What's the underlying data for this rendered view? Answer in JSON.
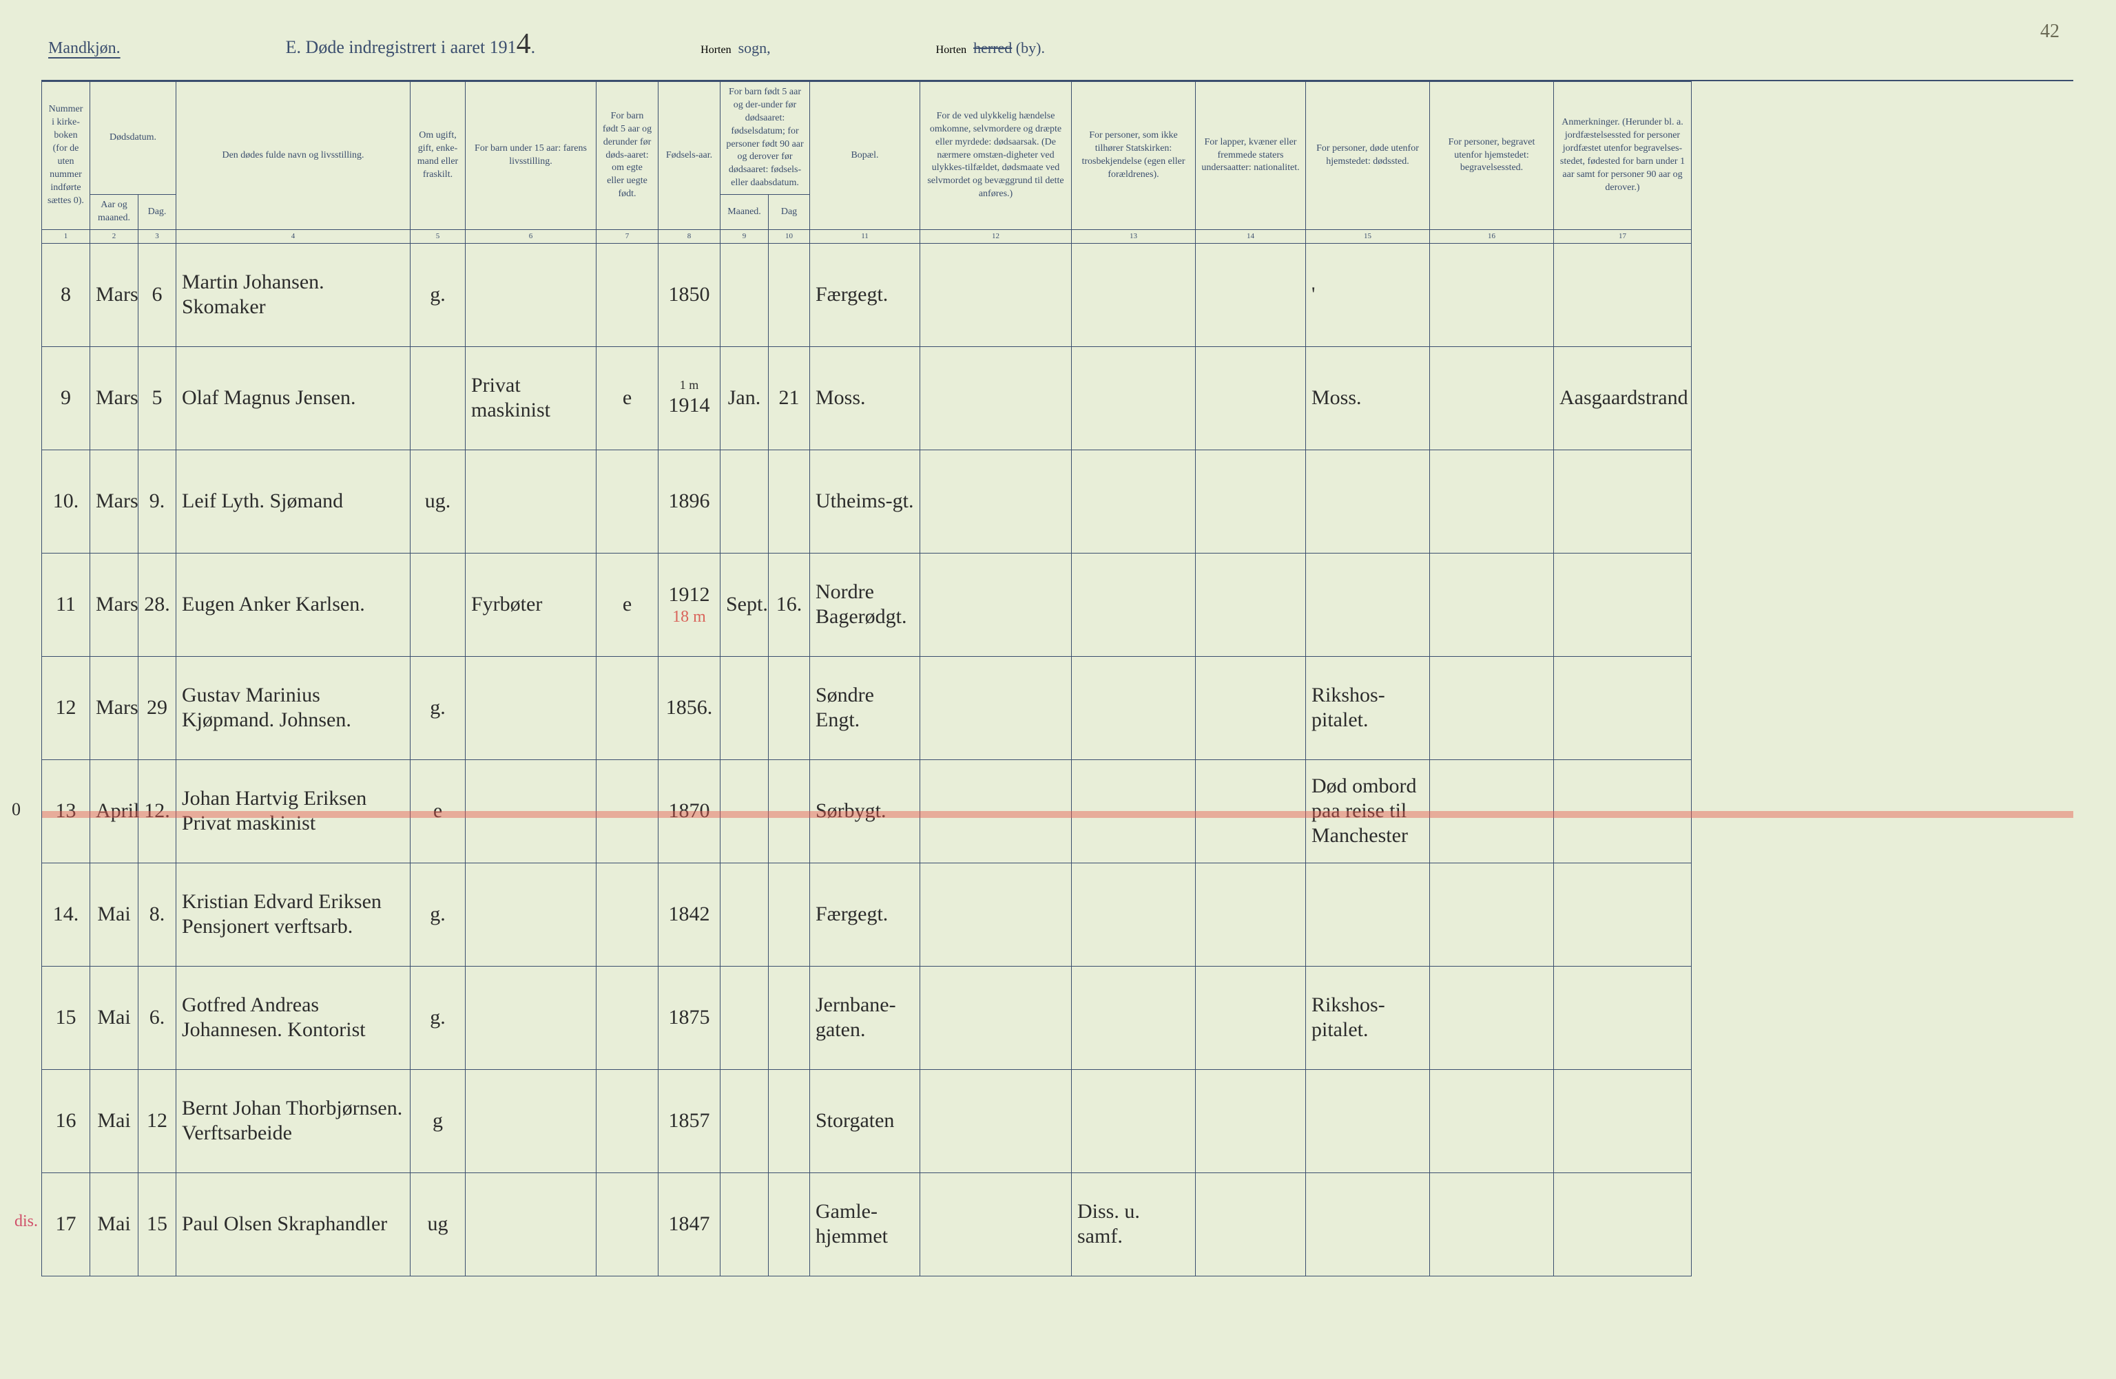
{
  "corner_number": "42",
  "header": {
    "left": "Mandkjøn.",
    "center_prefix": "E.   Døde indregistrert i aaret 191",
    "center_year_digit": "4",
    "center_suffix": ".",
    "sogn_script": "Horten",
    "sogn_label": "sogn,",
    "by_script": "Horten",
    "by_struck": "herred",
    "by_suffix": "(by)."
  },
  "columns": {
    "c1": "Nummer i kirke-boken (for de uten nummer indførte sættes 0).",
    "c2_group": "Dødsdatum.",
    "c2": "Aar og maaned.",
    "c3": "Dag.",
    "c4": "Den dødes fulde navn og livsstilling.",
    "c5": "Om ugift, gift, enke-mand eller fraskilt.",
    "c6": "For barn under 15 aar: farens livsstilling.",
    "c7": "For barn født 5 aar og derunder før døds-aaret: om egte eller uegte født.",
    "c8": "Fødsels-aar.",
    "c9_10_group": "For barn født 5 aar og der-under før dødsaaret: fødselsdatum; for personer født 90 aar og derover før dødsaaret: fødsels- eller daabsdatum.",
    "c9": "Maaned.",
    "c10": "Dag",
    "c11": "Bopæl.",
    "c12": "For de ved ulykkelig hændelse omkomne, selvmordere og dræpte eller myrdede: dødsaarsak. (De nærmere omstæn-digheter ved ulykkes-tilfældet, dødsmaate ved selvmordet og bevæggrund til dette anføres.)",
    "c13": "For personer, som ikke tilhører Statskirken: trosbekjendelse (egen eller forældrenes).",
    "c14": "For lapper, kvæner eller fremmede staters undersaatter: nationalitet.",
    "c15": "For personer, døde utenfor hjemstedet: dødssted.",
    "c16": "For personer, begravet utenfor hjemstedet: begravelsessted.",
    "c17": "Anmerkninger. (Herunder bl. a. jordfæstelsessted for personer jordfæstet utenfor begravelses-stedet, fødested for barn under 1 aar samt for personer 90 aar og derover.)"
  },
  "subnums": [
    "1",
    "2",
    "3",
    "4",
    "5",
    "6",
    "7",
    "8",
    "9",
    "10",
    "11",
    "12",
    "13",
    "14",
    "15",
    "16",
    "17"
  ],
  "rows": [
    {
      "num": "8",
      "month": "Mars",
      "day": "6",
      "name": "Martin Johansen. Skomaker",
      "status": "g.",
      "father": "",
      "legit": "",
      "birthyear": "1850",
      "bmonth": "",
      "bday": "",
      "residence": "Færgegt.",
      "c12": "",
      "c13": "",
      "c14": "",
      "c15": "'",
      "c16": "",
      "c17": ""
    },
    {
      "num": "9",
      "month": "Mars",
      "day": "5",
      "name": "Olaf Magnus Jensen.",
      "status": "",
      "father": "Privat maskinist",
      "legit": "e",
      "birthyear": "1914",
      "bmonth": "Jan.",
      "bday": "21",
      "residence": "Moss.",
      "c12": "",
      "c13": "",
      "c14": "",
      "c15": "Moss.",
      "c16": "",
      "c17": "Aasgaardstrand",
      "birthyear_note": "1 m"
    },
    {
      "num": "10.",
      "month": "Mars",
      "day": "9.",
      "name": "Leif Lyth. Sjømand",
      "status": "ug.",
      "father": "",
      "legit": "",
      "birthyear": "1896",
      "bmonth": "",
      "bday": "",
      "residence": "Utheims-gt.",
      "c12": "",
      "c13": "",
      "c14": "",
      "c15": "",
      "c16": "",
      "c17": ""
    },
    {
      "num": "11",
      "month": "Mars",
      "day": "28.",
      "name": "Eugen Anker Karlsen.",
      "status": "",
      "father": "Fyrbøter",
      "legit": "e",
      "birthyear": "1912",
      "bmonth": "Sept.",
      "bday": "16.",
      "residence": "Nordre Bagerødgt.",
      "c12": "",
      "c13": "",
      "c14": "",
      "c15": "",
      "c16": "",
      "c17": "",
      "red_note": "18 m"
    },
    {
      "num": "12",
      "month": "Mars",
      "day": "29",
      "name": "Gustav Marinius Kjøpmand. Johnsen.",
      "status": "g.",
      "father": "",
      "legit": "",
      "birthyear": "1856.",
      "bmonth": "",
      "bday": "",
      "residence": "Søndre Engt.",
      "c12": "",
      "c13": "",
      "c14": "",
      "c15": "Rikshos-pitalet.",
      "c16": "",
      "c17": ""
    },
    {
      "num": "13",
      "month": "April",
      "day": "12.",
      "name": "Johan Hartvig Eriksen Privat maskinist",
      "status": "e",
      "father": "",
      "legit": "",
      "birthyear": "1870",
      "bmonth": "",
      "bday": "",
      "residence": "Sørbygt.",
      "c12": "",
      "c13": "",
      "c14": "",
      "c15": "Død ombord paa reise til Manchester",
      "c16": "",
      "c17": "",
      "struck": true,
      "margin_circle": "0"
    },
    {
      "num": "14.",
      "month": "Mai",
      "day": "8.",
      "name": "Kristian Edvard Eriksen Pensjonert verftsarb.",
      "status": "g.",
      "father": "",
      "legit": "",
      "birthyear": "1842",
      "bmonth": "",
      "bday": "",
      "residence": "Færgegt.",
      "c12": "",
      "c13": "",
      "c14": "",
      "c15": "",
      "c16": "",
      "c17": ""
    },
    {
      "num": "15",
      "month": "Mai",
      "day": "6.",
      "name": "Gotfred Andreas Johannesen. Kontorist",
      "status": "g.",
      "father": "",
      "legit": "",
      "birthyear": "1875",
      "bmonth": "",
      "bday": "",
      "residence": "Jernbane-gaten.",
      "c12": "",
      "c13": "",
      "c14": "",
      "c15": "Rikshos-pitalet.",
      "c16": "",
      "c17": ""
    },
    {
      "num": "16",
      "month": "Mai",
      "day": "12",
      "name": "Bernt Johan Thorbjørnsen. Verftsarbeide",
      "status": "g",
      "father": "",
      "legit": "",
      "birthyear": "1857",
      "bmonth": "",
      "bday": "",
      "residence": "Storgaten",
      "c12": "",
      "c13": "",
      "c14": "",
      "c15": "",
      "c16": "",
      "c17": ""
    },
    {
      "num": "17",
      "month": "Mai",
      "day": "15",
      "name": "Paul Olsen Skraphandler",
      "status": "ug",
      "father": "",
      "legit": "",
      "birthyear": "1847",
      "bmonth": "",
      "bday": "",
      "residence": "Gamle-hjemmet",
      "c12": "",
      "c13": "Diss. u. samf.",
      "c14": "",
      "c15": "",
      "c16": "",
      "c17": "",
      "margin_note": "dis."
    }
  ]
}
